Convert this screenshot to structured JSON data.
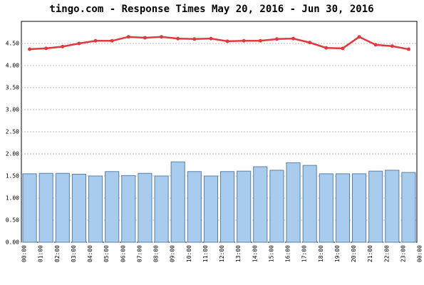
{
  "chart_data": {
    "type": "bar-line",
    "title": "tingo.com - Response Times May 20, 2016 - Jun 30, 2016",
    "xtick_labels": [
      "00:00",
      "01:00",
      "02:00",
      "03:00",
      "04:00",
      "05:00",
      "06:00",
      "07:00",
      "08:00",
      "09:00",
      "10:00",
      "11:00",
      "12:00",
      "13:00",
      "14:00",
      "15:00",
      "16:00",
      "17:00",
      "18:00",
      "19:00",
      "20:00",
      "21:00",
      "22:00",
      "23:00",
      "00:00"
    ],
    "series": [
      {
        "type": "bar",
        "color": "#a8ccee",
        "values": [
          1.55,
          1.56,
          1.56,
          1.54,
          1.5,
          1.6,
          1.51,
          1.56,
          1.5,
          1.82,
          1.6,
          1.5,
          1.6,
          1.61,
          1.71,
          1.63,
          1.8,
          1.74,
          1.55,
          1.55,
          1.55,
          1.61,
          1.63,
          1.58
        ]
      },
      {
        "type": "line",
        "color": "#e0393e",
        "values": [
          4.37,
          4.39,
          4.43,
          4.5,
          4.56,
          4.56,
          4.65,
          4.63,
          4.65,
          4.61,
          4.6,
          4.61,
          4.55,
          4.56,
          4.56,
          4.6,
          4.61,
          4.52,
          4.4,
          4.39,
          4.65,
          4.47,
          4.44,
          4.37
        ]
      }
    ],
    "ylim": [
      0,
      5
    ],
    "yticks": [
      {
        "value": 0,
        "label": "0.00"
      },
      {
        "value": 0.5,
        "label": "0.50"
      },
      {
        "value": 1,
        "label": "1.00"
      },
      {
        "value": 1.5,
        "label": "1.50"
      },
      {
        "value": 2,
        "label": "2.00"
      },
      {
        "value": 2.5,
        "label": "2.50"
      },
      {
        "value": 3,
        "label": "3.00"
      },
      {
        "value": 3.5,
        "label": "3.50"
      },
      {
        "value": 4,
        "label": "4.00"
      },
      {
        "value": 4.5,
        "label": "4.50"
      }
    ],
    "grid": true
  }
}
